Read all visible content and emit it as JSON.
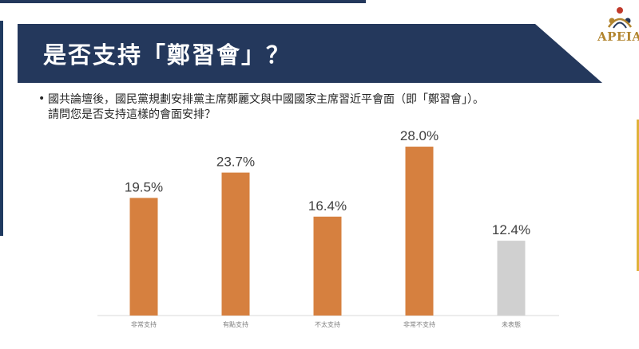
{
  "slide": {
    "title": "是否支持「鄭習會」？",
    "logo_text": "APEIA",
    "bullet_symbol": "•",
    "question_lines": [
      "國共論壇後，國民黨規劃安排黨主席鄭麗文與中國國家主席習近平會面（即「鄭習會」）。",
      "請問您是否支持這樣的會面安排？"
    ]
  },
  "colors": {
    "title_band": "#24385c",
    "bar_primary": "#d6803f",
    "bar_neutral": "#d0d0d0",
    "logo_gold": "#b2852f",
    "logo_red": "#c0392b"
  },
  "chart_data": {
    "type": "bar",
    "categories": [
      "非常支持",
      "有點支持",
      "不太支持",
      "非常不支持",
      "未表態"
    ],
    "values": [
      19.5,
      23.7,
      16.4,
      28.0,
      12.4
    ],
    "data_labels": [
      "19.5%",
      "23.7%",
      "16.4%",
      "28.0%",
      "12.4%"
    ],
    "bar_colors": [
      "#d6803f",
      "#d6803f",
      "#d6803f",
      "#d6803f",
      "#d0d0d0"
    ],
    "unit": "%",
    "ylim": [
      0,
      30
    ],
    "grid": false,
    "legend": "none"
  }
}
